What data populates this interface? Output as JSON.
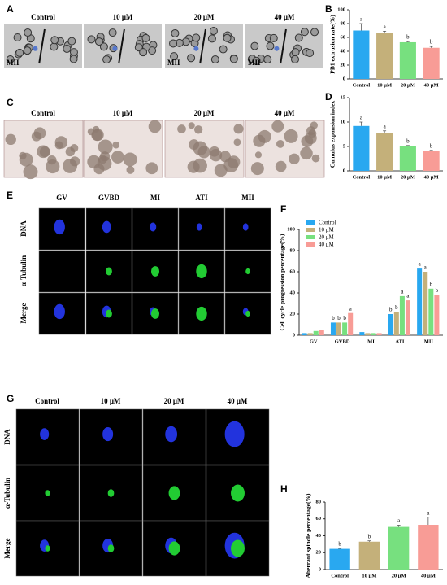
{
  "chart_data": [
    {
      "type": "bar",
      "ylabel": "PB1 extrusion rate(%)",
      "categories": [
        "Control",
        "10 μM",
        "20 μM",
        "40 μM"
      ],
      "values": [
        70,
        67,
        53,
        45
      ],
      "errors": [
        10,
        2,
        1,
        2
      ],
      "letters": [
        "a",
        "a",
        "b",
        "b"
      ],
      "colors": [
        "#29a8f0",
        "#c4b07a",
        "#77e07f",
        "#f89c96"
      ],
      "ylim": [
        0,
        100
      ],
      "yticks": [
        0,
        20,
        40,
        60,
        80,
        100
      ]
    },
    {
      "type": "bar",
      "ylabel": "Cumulus expansion index",
      "categories": [
        "Control",
        "10 μM",
        "20 μM",
        "40 μM"
      ],
      "values": [
        9.2,
        7.7,
        5.0,
        4.0
      ],
      "errors": [
        0.8,
        0.5,
        0.2,
        0.2
      ],
      "letters": [
        "a",
        "a",
        "b",
        "b"
      ],
      "colors": [
        "#29a8f0",
        "#c4b07a",
        "#77e07f",
        "#f89c96"
      ],
      "ylim": [
        0,
        15
      ],
      "yticks": [
        0,
        5,
        10,
        15
      ]
    },
    {
      "type": "grouped-bar",
      "ylabel": "Cell cycle progression percentage(%)",
      "categories": [
        "GV",
        "GVBD",
        "MI",
        "ATI",
        "MII"
      ],
      "series": [
        {
          "name": "Control",
          "color": "#29a8f0",
          "values": [
            2,
            12,
            3,
            20,
            63
          ],
          "letters": [
            null,
            "b",
            null,
            "b",
            "a"
          ]
        },
        {
          "name": "10 μM",
          "color": "#c4b07a",
          "values": [
            2,
            12,
            2,
            22,
            60
          ],
          "letters": [
            null,
            "b",
            null,
            "b",
            "a"
          ]
        },
        {
          "name": "20 μM",
          "color": "#77e07f",
          "values": [
            4,
            12,
            2,
            37,
            44
          ],
          "letters": [
            null,
            "b",
            null,
            "a",
            "b"
          ]
        },
        {
          "name": "40 μM",
          "color": "#f89c96",
          "values": [
            5,
            21,
            2,
            33,
            38
          ],
          "letters": [
            null,
            "a",
            null,
            "a",
            "b"
          ]
        }
      ],
      "ylim": [
        0,
        100
      ],
      "yticks": [
        0,
        20,
        40,
        60,
        80,
        100
      ],
      "legend": "upper-left"
    },
    {
      "type": "bar",
      "ylabel": "Aberrant spindle percentage(%)",
      "categories": [
        "Control",
        "10 μM",
        "20 μM",
        "40 μM"
      ],
      "values": [
        24.5,
        33,
        50.5,
        53
      ],
      "errors": [
        0.5,
        1,
        2,
        9
      ],
      "letters": [
        "b",
        "b",
        "a",
        "a"
      ],
      "colors": [
        "#29a8f0",
        "#c4b07a",
        "#77e07f",
        "#f89c96"
      ],
      "ylim": [
        0,
        80
      ],
      "yticks": [
        0,
        20,
        40,
        60,
        80
      ]
    }
  ],
  "figure": {
    "panels": [
      "A",
      "B",
      "C",
      "D",
      "E",
      "F",
      "G",
      "H"
    ],
    "A": {
      "columns": [
        "Control",
        "10 μM",
        "20 μM",
        "40 μM"
      ],
      "stage": "MII"
    },
    "C": {
      "columns": [
        "Control",
        "10 μM",
        "20 μM",
        "40 μM"
      ]
    },
    "E": {
      "columns": [
        "GV",
        "GVBD",
        "MI",
        "ATI",
        "MII"
      ],
      "rows": [
        "DNA",
        "α-Tubulin",
        "Merge"
      ]
    },
    "G": {
      "columns": [
        "Control",
        "10 μM",
        "20 μM",
        "40 μM"
      ],
      "rows": [
        "DNA",
        "α-Tubulin",
        "Merge"
      ]
    }
  }
}
